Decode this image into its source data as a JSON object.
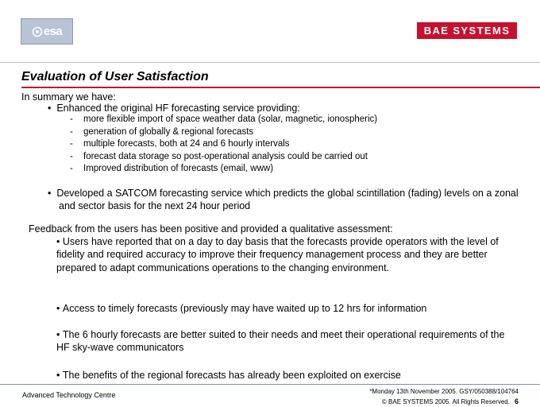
{
  "header": {
    "esa_logo_text": "esa",
    "bae_logo_text": "BAE SYSTEMS"
  },
  "title": "Evaluation of User Satisfaction",
  "summary": {
    "intro": "In summary we have:",
    "bullet1": "Enhanced the original HF forecasting service  providing:",
    "sub_items": [
      "more flexible import of space weather data (solar, magnetic, ionospheric)",
      "generation of globally & regional forecasts",
      "multiple forecasts, both at 24 and 6 hourly intervals",
      "forecast data storage so post-operational analysis could be carried out",
      "Improved distribution of forecasts (email, www)"
    ],
    "bullet2": "Developed a SATCOM forecasting service which predicts the global scintillation (fading) levels on a zonal and sector basis for the next 24 hour period"
  },
  "feedback": {
    "intro": "Feedback from the users has been positive and provided a qualitative assessment:",
    "items": [
      "Users have reported that on a day to day basis that the forecasts provide operators with the level of fidelity and required accuracy to improve their frequency management process and they are better prepared to adapt communications operations to the changing environment.",
      "Access to timely forecasts (previously may have waited up to 12 hrs for information",
      "The 6 hourly forecasts are better suited to their needs and meet their operational requirements of the HF sky-wave communicators",
      "The benefits of the regional forecasts has already been exploited on exercise"
    ]
  },
  "footer": {
    "left": "Advanced Technology Centre",
    "right_line1": "*Monday 13th November 2005. GSY/050388/104764",
    "right_line2": "© BAE SYSTEMS 2005. All Rights Reserved.",
    "page_number": "6"
  },
  "colors": {
    "bae_red": "#c8102e",
    "esa_blue_grey": "#b9c3d3"
  }
}
